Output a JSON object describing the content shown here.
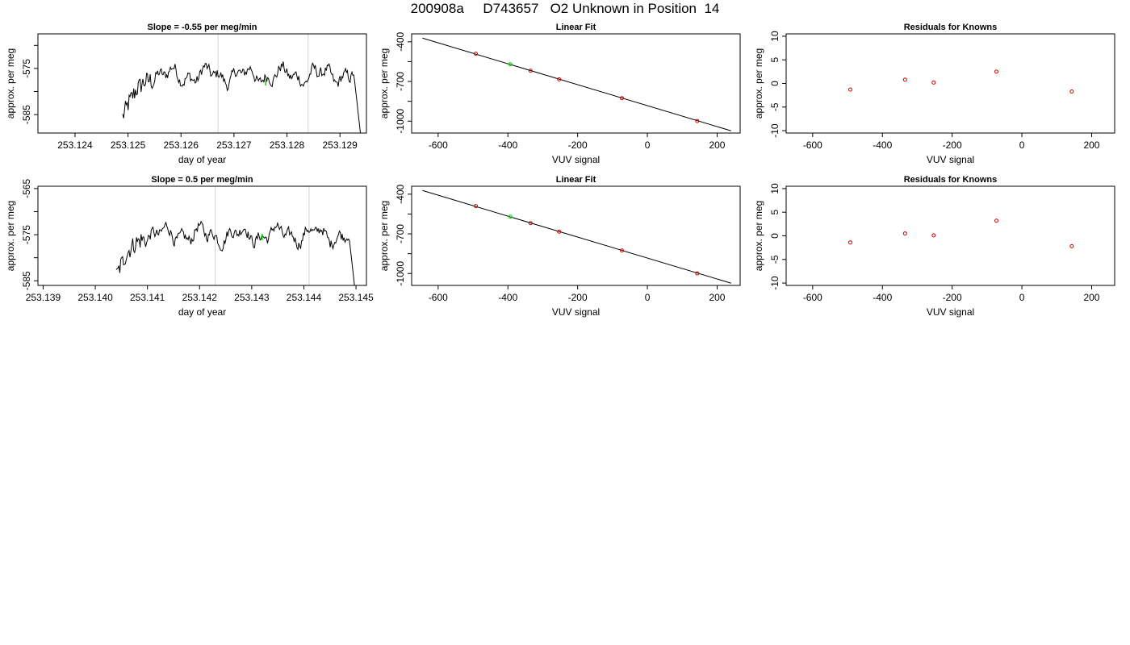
{
  "page": {
    "title": "200908a     D743657   O2 Unknown in Position  14"
  },
  "colors": {
    "trace": "#000000",
    "vline": "#d3d3d3",
    "known": "#cc0000",
    "unknown": "#00cc00"
  },
  "chart_data": [
    {
      "type": "line",
      "title": "Slope =  -0.55  per meg/min",
      "xlabel": "day of year",
      "ylabel": "approx. per meg",
      "xlim": [
        253.1233,
        253.1295
      ],
      "ylim": [
        -589,
        -567.5
      ],
      "xticks": [
        253.124,
        253.125,
        253.126,
        253.127,
        253.128,
        253.129
      ],
      "xtick_labels": [
        "253.124",
        "253.125",
        "253.126",
        "253.127",
        "253.128",
        "253.129"
      ],
      "yticks": [
        -585,
        -580,
        -575,
        -570
      ],
      "ytick_labels": [
        "-585",
        "",
        "-575",
        ""
      ],
      "vlines": [
        253.1267,
        253.1284
      ],
      "x_start": 253.1249,
      "x_end": 253.1294,
      "trace_level": -576.5,
      "marker": {
        "x": 253.1276,
        "y": -578
      }
    },
    {
      "type": "scatter",
      "title": "Linear Fit",
      "xlabel": "VUV signal",
      "ylabel": "approx. per meg",
      "xlim": [
        -676,
        266
      ],
      "ylim": [
        -1090,
        -340
      ],
      "xticks": [
        -600,
        -400,
        -200,
        0,
        200
      ],
      "yticks": [
        -1000,
        -850,
        -700,
        -550,
        -400
      ],
      "ytick_labels": [
        "-1000",
        "",
        "-700",
        "",
        "-400"
      ],
      "fit_line": {
        "x": [
          -645,
          240
        ],
        "y": [
          -372,
          -1073
        ]
      },
      "known_points": {
        "x": [
          -492,
          -335,
          -253,
          -73,
          143
        ],
        "y": [
          -490,
          -619,
          -684,
          -826,
          -999
        ]
      },
      "unknown_point": {
        "x": [
          -393
        ],
        "y": [
          -570
        ]
      }
    },
    {
      "type": "scatter",
      "title": "Residuals for Knowns",
      "xlabel": "VUV signal",
      "ylabel": "approx. per meg",
      "xlim": [
        -676,
        266
      ],
      "ylim": [
        -10.5,
        10.5
      ],
      "xticks": [
        -600,
        -400,
        -200,
        0,
        200
      ],
      "yticks": [
        -10,
        -5,
        0,
        5,
        10
      ],
      "ytick_labels": [
        "-10",
        "-5",
        "0",
        "5",
        "10"
      ],
      "known_points": {
        "x": [
          -492,
          -335,
          -253,
          -73,
          143
        ],
        "y": [
          -1.3,
          0.8,
          0.2,
          2.5,
          -1.7
        ]
      }
    },
    {
      "type": "line",
      "title": "Slope =  0.5  per meg/min",
      "xlabel": "day of year",
      "ylabel": "approx. per meg",
      "xlim": [
        253.1389,
        253.1452
      ],
      "ylim": [
        -586,
        -564.5
      ],
      "xticks": [
        253.139,
        253.14,
        253.141,
        253.142,
        253.143,
        253.144,
        253.145
      ],
      "xtick_labels": [
        "253.139",
        "253.140",
        "253.141",
        "253.142",
        "253.143",
        "253.144",
        "253.145"
      ],
      "yticks": [
        -585,
        -580,
        -575,
        -570,
        -565
      ],
      "ytick_labels": [
        "-585",
        "",
        "-575",
        "",
        "-565"
      ],
      "vlines": [
        253.1423,
        253.1441
      ],
      "x_start": 253.1404,
      "x_end": 253.145,
      "trace_level": -575,
      "marker": {
        "x": 253.1432,
        "y": -575.5
      }
    },
    {
      "type": "scatter",
      "title": "Linear Fit",
      "xlabel": "VUV signal",
      "ylabel": "approx. per meg",
      "xlim": [
        -676,
        266
      ],
      "ylim": [
        -1090,
        -340
      ],
      "xticks": [
        -600,
        -400,
        -200,
        0,
        200
      ],
      "yticks": [
        -1000,
        -850,
        -700,
        -550,
        -400
      ],
      "ytick_labels": [
        "-1000",
        "",
        "-700",
        "",
        "-400"
      ],
      "fit_line": {
        "x": [
          -645,
          240
        ],
        "y": [
          -372,
          -1073
        ]
      },
      "known_points": {
        "x": [
          -492,
          -335,
          -253,
          -73,
          143
        ],
        "y": [
          -490,
          -619,
          -684,
          -826,
          -999
        ]
      },
      "unknown_point": {
        "x": [
          -393
        ],
        "y": [
          -570
        ]
      }
    },
    {
      "type": "scatter",
      "title": "Residuals for Knowns",
      "xlabel": "VUV signal",
      "ylabel": "approx. per meg",
      "xlim": [
        -676,
        266
      ],
      "ylim": [
        -10.5,
        10.5
      ],
      "xticks": [
        -600,
        -400,
        -200,
        0,
        200
      ],
      "yticks": [
        -10,
        -5,
        0,
        5,
        10
      ],
      "ytick_labels": [
        "-10",
        "-5",
        "0",
        "5",
        "10"
      ],
      "known_points": {
        "x": [
          -492,
          -335,
          -253,
          -73,
          143
        ],
        "y": [
          -1.4,
          0.5,
          0.1,
          3.2,
          -2.2
        ]
      }
    }
  ]
}
